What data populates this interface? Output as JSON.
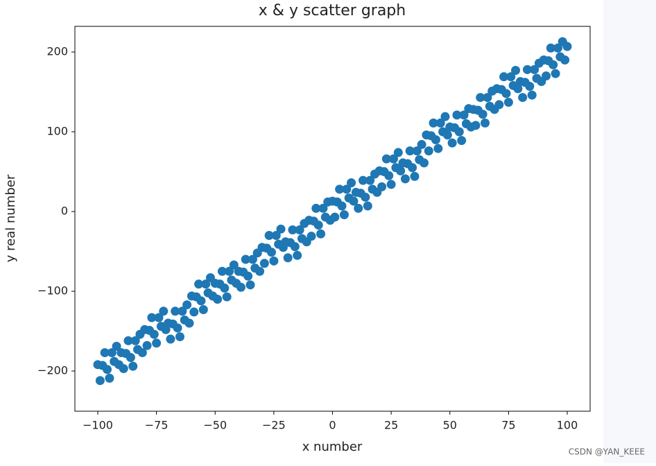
{
  "chart_data": {
    "type": "scatter",
    "title": "x & y scatter graph",
    "x_label": "x number",
    "y_label": "y real number",
    "color": "#1f77b4",
    "x": [
      -100,
      -99,
      -98,
      -97,
      -96,
      -95,
      -94,
      -93,
      -92,
      -91,
      -90,
      -89,
      -88,
      -87,
      -86,
      -85,
      -84,
      -83,
      -82,
      -81,
      -80,
      -79,
      -78,
      -77,
      -76,
      -75,
      -74,
      -73,
      -72,
      -71,
      -70,
      -69,
      -68,
      -67,
      -66,
      -65,
      -64,
      -63,
      -62,
      -61,
      -60,
      -59,
      -58,
      -57,
      -56,
      -55,
      -54,
      -53,
      -52,
      -51,
      -50,
      -49,
      -48,
      -47,
      -46,
      -45,
      -44,
      -43,
      -42,
      -41,
      -40,
      -39,
      -38,
      -37,
      -36,
      -35,
      -34,
      -33,
      -32,
      -31,
      -30,
      -29,
      -28,
      -27,
      -26,
      -25,
      -24,
      -23,
      -22,
      -21,
      -20,
      -19,
      -18,
      -17,
      -16,
      -15,
      -14,
      -13,
      -12,
      -11,
      -10,
      -9,
      -8,
      -7,
      -6,
      -5,
      -4,
      -3,
      -2,
      -1,
      0,
      1,
      2,
      3,
      4,
      5,
      6,
      7,
      8,
      9,
      10,
      11,
      12,
      13,
      14,
      15,
      16,
      17,
      18,
      19,
      20,
      21,
      22,
      23,
      24,
      25,
      26,
      27,
      28,
      29,
      30,
      31,
      32,
      33,
      34,
      35,
      36,
      37,
      38,
      39,
      40,
      41,
      42,
      43,
      44,
      45,
      46,
      47,
      48,
      49,
      50,
      51,
      52,
      53,
      54,
      55,
      56,
      57,
      58,
      59,
      60,
      61,
      62,
      63,
      64,
      65,
      66,
      67,
      68,
      69,
      70,
      71,
      72,
      73,
      74,
      75,
      76,
      77,
      78,
      79,
      80,
      81,
      82,
      83,
      84,
      85,
      86,
      87,
      88,
      89,
      90,
      91,
      92,
      93,
      94,
      95,
      96,
      97,
      98,
      99,
      100
    ],
    "values": [
      -192,
      -212,
      -193,
      -177,
      -198,
      -209,
      -177,
      -188,
      -169,
      -192,
      -177,
      -197,
      -178,
      -162,
      -183,
      -194,
      -162,
      -173,
      -154,
      -177,
      -148,
      -168,
      -149,
      -133,
      -154,
      -165,
      -133,
      -144,
      -125,
      -148,
      -140,
      -160,
      -141,
      -125,
      -146,
      -157,
      -125,
      -136,
      -117,
      -140,
      -106,
      -126,
      -107,
      -91,
      -112,
      -123,
      -91,
      -102,
      -83,
      -106,
      -90,
      -110,
      -91,
      -75,
      -96,
      -107,
      -75,
      -86,
      -67,
      -90,
      -75,
      -95,
      -76,
      -60,
      -81,
      -92,
      -60,
      -71,
      -52,
      -75,
      -45,
      -65,
      -46,
      -30,
      -51,
      -62,
      -30,
      -41,
      -22,
      -45,
      -38,
      -58,
      -39,
      -23,
      -44,
      -55,
      -23,
      -34,
      -15,
      -38,
      -11,
      -31,
      -12,
      4,
      -17,
      -28,
      4,
      -7,
      12,
      -11,
      13,
      -7,
      12,
      28,
      7,
      -4,
      28,
      17,
      36,
      13,
      24,
      4,
      23,
      39,
      18,
      7,
      39,
      28,
      47,
      24,
      51,
      31,
      50,
      66,
      45,
      34,
      66,
      55,
      74,
      51,
      61,
      41,
      60,
      76,
      55,
      44,
      76,
      65,
      84,
      61,
      96,
      76,
      95,
      111,
      90,
      79,
      111,
      100,
      119,
      96,
      106,
      86,
      105,
      121,
      100,
      89,
      121,
      110,
      129,
      106,
      128,
      108,
      127,
      143,
      122,
      111,
      143,
      132,
      151,
      128,
      154,
      134,
      153,
      169,
      148,
      137,
      169,
      158,
      177,
      154,
      163,
      143,
      162,
      178,
      157,
      146,
      178,
      167,
      186,
      163,
      190,
      170,
      189,
      205,
      184,
      173,
      205,
      194,
      213,
      190,
      207
    ],
    "xlim": [
      -109.75,
      109.75
    ],
    "ylim": [
      -250.4,
      232.2
    ],
    "xticks": [
      {
        "value": -100,
        "label": "−100"
      },
      {
        "value": -75,
        "label": "−75"
      },
      {
        "value": -50,
        "label": "−50"
      },
      {
        "value": -25,
        "label": "−25"
      },
      0,
      25,
      50,
      75,
      100
    ],
    "yticks": [
      {
        "value": -200,
        "label": "−200"
      },
      {
        "value": -100,
        "label": "−100"
      },
      0,
      100,
      200
    ],
    "grid": false
  },
  "watermark": "CSDN @YAN_KEEE"
}
